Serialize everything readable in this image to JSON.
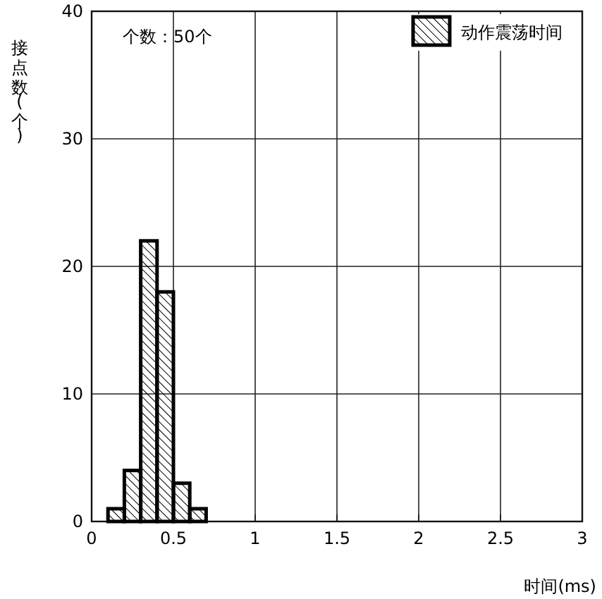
{
  "chart_data": {
    "type": "histogram",
    "bins": [
      0.1,
      0.2,
      0.3,
      0.4,
      0.5,
      0.6,
      0.7
    ],
    "series": [
      {
        "name": "动作震荡时间",
        "color": "#000000",
        "values": [
          1,
          4,
          22,
          18,
          3,
          1
        ]
      }
    ],
    "xlim": [
      0,
      3
    ],
    "ylim": [
      0,
      40
    ],
    "xticks": [
      0,
      0.5,
      1,
      1.5,
      2,
      2.5,
      3
    ],
    "yticks": [
      0,
      10,
      20,
      30,
      40
    ],
    "grid": true,
    "xlabel": "时间(ms)",
    "ylabel": "接点数(个)",
    "legend": "top right",
    "annotations": [
      "个数：50个"
    ]
  }
}
